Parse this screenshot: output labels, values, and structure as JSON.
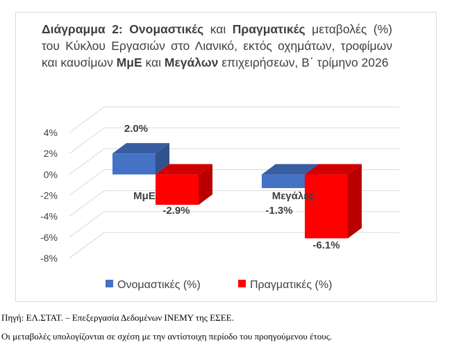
{
  "title_parts": [
    {
      "text": "Διάγραμμα 2: ",
      "bold": true
    },
    {
      "text": "Ονομαστικές",
      "bold": true
    },
    {
      "text": " και ",
      "bold": false
    },
    {
      "text": "Πραγματικές",
      "bold": true
    },
    {
      "text": " μεταβολές (%) του Κύκλου Εργασιών στο Λιανικό, εκτός οχημάτων, τροφίμων και καυσίμων ",
      "bold": false
    },
    {
      "text": "ΜμΕ",
      "bold": true
    },
    {
      "text": " και ",
      "bold": false
    },
    {
      "text": "Μεγάλων",
      "bold": true
    },
    {
      "text": " επιχειρήσεων, Β΄ τρίμηνο 2026",
      "bold": false
    }
  ],
  "colors": {
    "nominal": "#4472c4",
    "real": "#ff0000",
    "text": "#404040",
    "grid": "#d9d9d9"
  },
  "chart_data": {
    "type": "bar",
    "categories": [
      "ΜμΕ",
      "Μεγάλες"
    ],
    "series": [
      {
        "name": "Ονομαστικές (%)",
        "values": [
          2.0,
          -1.3
        ]
      },
      {
        "name": "Πραγματικές (%)",
        "values": [
          -2.9,
          -6.1
        ]
      }
    ],
    "data_labels": [
      [
        "2.0%",
        "-1.3%"
      ],
      [
        "-2.9%",
        "-6.1%"
      ]
    ],
    "ylim": [
      -8,
      4
    ],
    "yticks": [
      "4%",
      "2%",
      "0%",
      "-2%",
      "-4%",
      "-6%",
      "-8%"
    ],
    "ytick_values": [
      4,
      2,
      0,
      -2,
      -4,
      -6,
      -8
    ],
    "grid": true,
    "legend_position": "bottom",
    "style": "3d-clustered-column"
  },
  "footnotes": {
    "source": "Πηγή: ΕΛ.ΣΤΑΤ. – Επεξεργασία Δεδομένων ΙΝΕΜΥ της ΕΣΕΕ.",
    "note": "Οι μεταβολές υπολογίζονται σε σχέση με την αντίστοιχη περίοδο του προηγούμενου έτους."
  }
}
